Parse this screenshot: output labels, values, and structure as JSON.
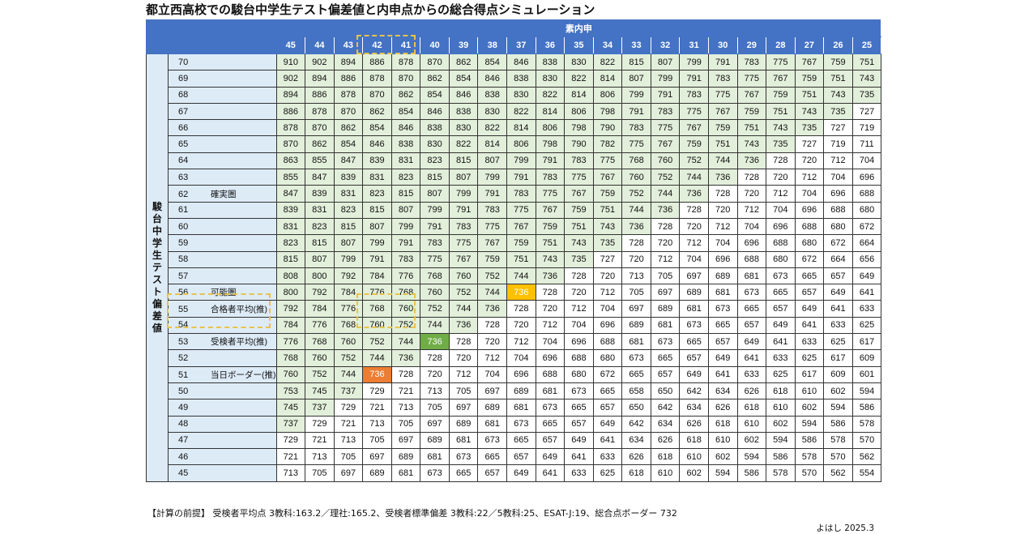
{
  "title": "都立西高校での駿台中学生テスト偏差値と内申点からの総合得点シミュレーション",
  "column_group_header": "素内申",
  "row_group_header": "駿台中学生テスト偏差値",
  "columns": [
    45,
    44,
    43,
    42,
    41,
    40,
    39,
    38,
    37,
    36,
    35,
    34,
    33,
    32,
    31,
    30,
    29,
    28,
    27,
    26,
    25
  ],
  "pass_border": 732,
  "colors": {
    "header": "#4472c4",
    "label_bg": "#ddebf7",
    "above_border": "#e2efda",
    "passer_avg": "#ffc000",
    "examinee_avg": "#70ad47",
    "day_border": "#ed7d31",
    "dashed_box": "#e8c34a"
  },
  "rows": [
    {
      "dev": 70,
      "label": "",
      "values": [
        910,
        902,
        894,
        886,
        878,
        870,
        862,
        854,
        846,
        838,
        830,
        822,
        815,
        807,
        799,
        791,
        783,
        775,
        767,
        759,
        751
      ]
    },
    {
      "dev": 69,
      "label": "",
      "values": [
        902,
        894,
        886,
        878,
        870,
        862,
        854,
        846,
        838,
        830,
        822,
        814,
        807,
        799,
        791,
        783,
        775,
        767,
        759,
        751,
        743
      ]
    },
    {
      "dev": 68,
      "label": "",
      "values": [
        894,
        886,
        878,
        870,
        862,
        854,
        846,
        838,
        830,
        822,
        814,
        806,
        799,
        791,
        783,
        775,
        767,
        759,
        751,
        743,
        735
      ]
    },
    {
      "dev": 67,
      "label": "",
      "values": [
        886,
        878,
        870,
        862,
        854,
        846,
        838,
        830,
        822,
        814,
        806,
        798,
        791,
        783,
        775,
        767,
        759,
        751,
        743,
        735,
        727
      ]
    },
    {
      "dev": 66,
      "label": "",
      "values": [
        878,
        870,
        862,
        854,
        846,
        838,
        830,
        822,
        814,
        806,
        798,
        790,
        783,
        775,
        767,
        759,
        751,
        743,
        735,
        727,
        719
      ]
    },
    {
      "dev": 65,
      "label": "",
      "values": [
        870,
        862,
        854,
        846,
        838,
        830,
        822,
        814,
        806,
        798,
        790,
        782,
        775,
        767,
        759,
        751,
        743,
        735,
        727,
        719,
        711
      ]
    },
    {
      "dev": 64,
      "label": "",
      "values": [
        863,
        855,
        847,
        839,
        831,
        823,
        815,
        807,
        799,
        791,
        783,
        775,
        768,
        760,
        752,
        744,
        736,
        728,
        720,
        712,
        704
      ]
    },
    {
      "dev": 63,
      "label": "",
      "values": [
        855,
        847,
        839,
        831,
        823,
        815,
        807,
        799,
        791,
        783,
        775,
        767,
        760,
        752,
        744,
        736,
        728,
        720,
        712,
        704,
        696
      ]
    },
    {
      "dev": 62,
      "label": "確実圏",
      "values": [
        847,
        839,
        831,
        823,
        815,
        807,
        799,
        791,
        783,
        775,
        767,
        759,
        752,
        744,
        736,
        728,
        720,
        712,
        704,
        696,
        688
      ]
    },
    {
      "dev": 61,
      "label": "",
      "values": [
        839,
        831,
        823,
        815,
        807,
        799,
        791,
        783,
        775,
        767,
        759,
        751,
        744,
        736,
        728,
        720,
        712,
        704,
        696,
        688,
        680
      ]
    },
    {
      "dev": 60,
      "label": "",
      "values": [
        831,
        823,
        815,
        807,
        799,
        791,
        783,
        775,
        767,
        759,
        751,
        743,
        736,
        728,
        720,
        712,
        704,
        696,
        688,
        680,
        672
      ]
    },
    {
      "dev": 59,
      "label": "",
      "values": [
        823,
        815,
        807,
        799,
        791,
        783,
        775,
        767,
        759,
        751,
        743,
        735,
        728,
        720,
        712,
        704,
        696,
        688,
        680,
        672,
        664
      ]
    },
    {
      "dev": 58,
      "label": "",
      "values": [
        815,
        807,
        799,
        791,
        783,
        775,
        767,
        759,
        751,
        743,
        735,
        727,
        720,
        712,
        704,
        696,
        688,
        680,
        672,
        664,
        656
      ]
    },
    {
      "dev": 57,
      "label": "",
      "values": [
        808,
        800,
        792,
        784,
        776,
        768,
        760,
        752,
        744,
        736,
        728,
        720,
        713,
        705,
        697,
        689,
        681,
        673,
        665,
        657,
        649
      ]
    },
    {
      "dev": 56,
      "label": "可能圏",
      "values": [
        800,
        792,
        784,
        776,
        768,
        760,
        752,
        744,
        736,
        728,
        720,
        712,
        705,
        697,
        689,
        681,
        673,
        665,
        657,
        649,
        641
      ]
    },
    {
      "dev": 55,
      "label": "合格者平均(推)",
      "values": [
        792,
        784,
        776,
        768,
        760,
        752,
        744,
        736,
        728,
        720,
        712,
        704,
        697,
        689,
        681,
        673,
        665,
        657,
        649,
        641,
        633
      ]
    },
    {
      "dev": 54,
      "label": "",
      "values": [
        784,
        776,
        768,
        760,
        752,
        744,
        736,
        728,
        720,
        712,
        704,
        696,
        689,
        681,
        673,
        665,
        657,
        649,
        641,
        633,
        625
      ]
    },
    {
      "dev": 53,
      "label": "受検者平均(推)",
      "values": [
        776,
        768,
        760,
        752,
        744,
        736,
        728,
        720,
        712,
        704,
        696,
        688,
        681,
        673,
        665,
        657,
        649,
        641,
        633,
        625,
        617
      ]
    },
    {
      "dev": 52,
      "label": "",
      "values": [
        768,
        760,
        752,
        744,
        736,
        728,
        720,
        712,
        704,
        696,
        688,
        680,
        673,
        665,
        657,
        649,
        641,
        633,
        625,
        617,
        609
      ]
    },
    {
      "dev": 51,
      "label": "当日ボーダー(推)",
      "values": [
        760,
        752,
        744,
        736,
        728,
        720,
        712,
        704,
        696,
        688,
        680,
        672,
        665,
        657,
        649,
        641,
        633,
        625,
        617,
        609,
        601
      ]
    },
    {
      "dev": 50,
      "label": "",
      "values": [
        753,
        745,
        737,
        729,
        721,
        713,
        705,
        697,
        689,
        681,
        673,
        665,
        658,
        650,
        642,
        634,
        626,
        618,
        610,
        602,
        594
      ]
    },
    {
      "dev": 49,
      "label": "",
      "values": [
        745,
        737,
        729,
        721,
        713,
        705,
        697,
        689,
        681,
        673,
        665,
        657,
        650,
        642,
        634,
        626,
        618,
        610,
        602,
        594,
        586
      ]
    },
    {
      "dev": 48,
      "label": "",
      "values": [
        737,
        729,
        721,
        713,
        705,
        697,
        689,
        681,
        673,
        665,
        657,
        649,
        642,
        634,
        626,
        618,
        610,
        602,
        594,
        586,
        578
      ]
    },
    {
      "dev": 47,
      "label": "",
      "values": [
        729,
        721,
        713,
        705,
        697,
        689,
        681,
        673,
        665,
        657,
        649,
        641,
        634,
        626,
        618,
        610,
        602,
        594,
        586,
        578,
        570
      ]
    },
    {
      "dev": 46,
      "label": "",
      "values": [
        721,
        713,
        705,
        697,
        689,
        681,
        673,
        665,
        657,
        649,
        641,
        633,
        626,
        618,
        610,
        602,
        594,
        586,
        578,
        570,
        562
      ]
    },
    {
      "dev": 45,
      "label": "",
      "values": [
        713,
        705,
        697,
        689,
        681,
        673,
        665,
        657,
        649,
        641,
        633,
        625,
        618,
        610,
        602,
        594,
        586,
        578,
        570,
        562,
        554
      ]
    }
  ],
  "highlights": [
    {
      "dev": 56,
      "naishin": 37,
      "style": "hl-yellow"
    },
    {
      "dev": 53,
      "naishin": 40,
      "style": "hl-green"
    },
    {
      "dev": 51,
      "naishin": 42,
      "style": "hl-orange"
    }
  ],
  "footnote": "【計算の前提】 受検者平均点 3教科:163.2／理社:165.2、受検者標準偏差 3教科:22／5教科:25、ESAT-J:19、総合点ボーダー 732",
  "credit": "よはし 2025.3"
}
